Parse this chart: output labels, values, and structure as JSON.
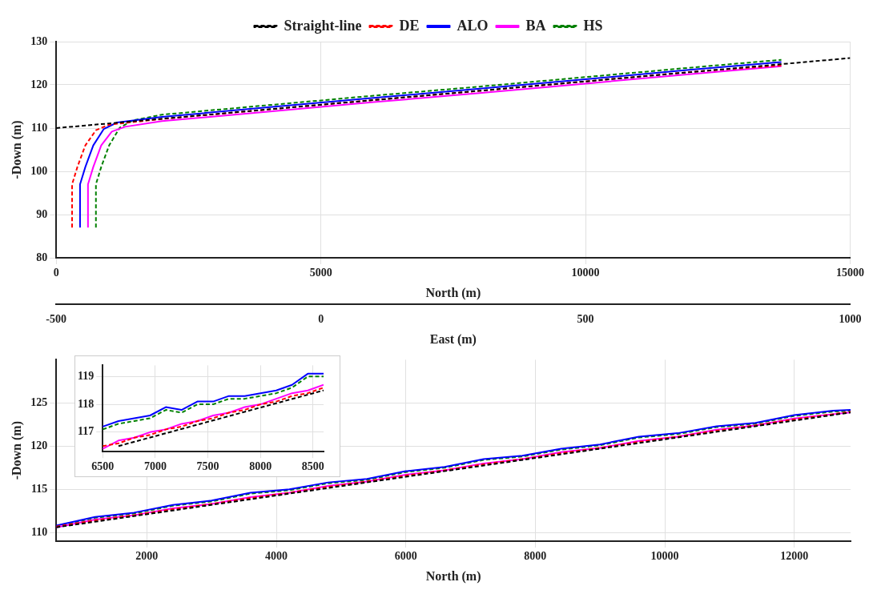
{
  "chart_data": [
    {
      "type": "line",
      "xlabel": "North (m)",
      "ylabel": "-Down (m)",
      "x2label": "East (m)",
      "x2lim": [
        -500,
        1000
      ],
      "x2ticks": [
        -500,
        0,
        500,
        1000
      ],
      "xlim": [
        0,
        15000
      ],
      "xticks": [
        0,
        5000,
        10000,
        15000
      ],
      "ylim": [
        80,
        130
      ],
      "yticks": [
        80,
        90,
        100,
        110,
        120,
        130
      ],
      "grid": true,
      "legend": "top",
      "series": [
        {
          "name": "Straight-line",
          "color": "#000000",
          "line_style": "dashed",
          "x": [
            0,
            15000
          ],
          "values": [
            110.0,
            126.2
          ]
        },
        {
          "name": "DE",
          "color": "#ff0000",
          "line_style": "dashed",
          "x": [
            300,
            300,
            400,
            550,
            750,
            1000,
            2000,
            4000,
            6000,
            8000,
            10000,
            12000,
            13700
          ],
          "values": [
            87,
            97,
            101,
            106,
            109.5,
            110.8,
            112.1,
            114.3,
            116.5,
            118.6,
            120.8,
            123.0,
            124.5
          ]
        },
        {
          "name": "ALO",
          "color": "#0000ff",
          "line_style": "solid",
          "x": [
            450,
            450,
            550,
            700,
            900,
            1150,
            2000,
            4000,
            6000,
            8000,
            10000,
            12000,
            13700
          ],
          "values": [
            87,
            97,
            101,
            106,
            109.8,
            111.3,
            112.6,
            114.8,
            117.0,
            119.1,
            121.3,
            123.5,
            125.3
          ]
        },
        {
          "name": "BA",
          "color": "#ff00ff",
          "line_style": "solid",
          "x": [
            600,
            600,
            700,
            850,
            1050,
            1300,
            2000,
            4000,
            6000,
            8000,
            10000,
            12000,
            13700
          ],
          "values": [
            87,
            97,
            101,
            106,
            109.2,
            110.3,
            111.6,
            113.8,
            116.0,
            118.1,
            120.3,
            122.5,
            124.3
          ]
        },
        {
          "name": "HS",
          "color": "#008000",
          "line_style": "dashed",
          "x": [
            750,
            750,
            850,
            1000,
            1200,
            1450,
            2000,
            4000,
            6000,
            8000,
            10000,
            12000,
            13700
          ],
          "values": [
            87,
            97,
            101,
            106,
            110.1,
            111.8,
            113.1,
            115.3,
            117.5,
            119.6,
            121.8,
            124.0,
            125.8
          ]
        }
      ]
    },
    {
      "type": "line",
      "xlabel": "North (m)",
      "ylabel": "-Down (m)",
      "xlim": [
        600,
        12870
      ],
      "xticks": [
        2000,
        4000,
        6000,
        8000,
        10000,
        12000
      ],
      "ylim": [
        109,
        130
      ],
      "yticks": [
        110,
        115,
        120,
        125
      ],
      "grid": true,
      "series": [
        {
          "color": "#000000",
          "line_style": "dashed",
          "x": [
            600,
            12870
          ],
          "values": [
            110.6,
            123.9
          ]
        },
        {
          "color": "#ff0000",
          "line_style": "dashed",
          "x": [
            600,
            1200,
            1800,
            2400,
            3000,
            3600,
            4200,
            4800,
            5400,
            6000,
            6600,
            7200,
            7800,
            8400,
            9000,
            9600,
            10200,
            10800,
            11400,
            12000,
            12600,
            12870
          ],
          "values": [
            110.7,
            111.4,
            112.0,
            112.7,
            113.3,
            114.0,
            114.6,
            115.3,
            115.9,
            116.6,
            117.2,
            117.9,
            118.5,
            119.2,
            119.8,
            120.5,
            121.1,
            121.8,
            122.4,
            123.1,
            123.7,
            124.0
          ]
        },
        {
          "color": "#0000ff",
          "line_style": "solid",
          "x": [
            600,
            1200,
            1800,
            2400,
            3000,
            3600,
            4200,
            4800,
            5400,
            6000,
            6600,
            7200,
            7800,
            8400,
            9000,
            9600,
            10200,
            10800,
            11400,
            12000,
            12600,
            12870
          ],
          "values": [
            110.8,
            111.8,
            112.3,
            113.2,
            113.7,
            114.6,
            115.0,
            115.8,
            116.2,
            117.1,
            117.6,
            118.5,
            118.9,
            119.7,
            120.2,
            121.1,
            121.5,
            122.3,
            122.7,
            123.6,
            124.1,
            124.2
          ]
        },
        {
          "color": "#ff00ff",
          "line_style": "solid",
          "x": [
            600,
            1200,
            1800,
            2400,
            3000,
            3600,
            4200,
            4800,
            5400,
            6000,
            6600,
            7200,
            7800,
            8400,
            9000,
            9600,
            10200,
            10800,
            11400,
            12000,
            12600,
            12870
          ],
          "values": [
            110.6,
            111.5,
            112.0,
            112.8,
            113.3,
            114.1,
            114.6,
            115.4,
            115.9,
            116.7,
            117.2,
            118.0,
            118.5,
            119.3,
            119.8,
            120.6,
            121.1,
            121.9,
            122.4,
            123.2,
            123.7,
            123.9
          ]
        },
        {
          "color": "#008000",
          "line_style": "dashed",
          "x": [
            600,
            1200,
            1800,
            2400,
            3000,
            3600,
            4200,
            4800,
            5400,
            6000,
            6600,
            7200,
            7800,
            8400,
            9000,
            9600,
            10200,
            10800,
            11400,
            12000,
            12600,
            12870
          ],
          "values": [
            110.7,
            111.7,
            112.2,
            113.1,
            113.6,
            114.5,
            114.9,
            115.7,
            116.1,
            117.0,
            117.5,
            118.4,
            118.8,
            119.6,
            120.1,
            121.0,
            121.4,
            122.2,
            122.6,
            123.5,
            124.0,
            124.1
          ]
        }
      ]
    },
    {
      "type": "line",
      "xlim": [
        6500,
        8600
      ],
      "xticks": [
        6500,
        7000,
        7500,
        8000,
        8500
      ],
      "ylim": [
        116.3,
        119.4
      ],
      "yticks": [
        117,
        118,
        119
      ],
      "grid": true,
      "series": [
        {
          "color": "#000000",
          "line_style": "dashed",
          "x": [
            6650,
            8600
          ],
          "values": [
            116.5,
            118.5
          ]
        },
        {
          "color": "#ff0000",
          "line_style": "dashed",
          "x": [
            6500,
            6650,
            6800,
            6950,
            7100,
            7250,
            7400,
            7550,
            7700,
            7850,
            8000,
            8150,
            8300,
            8450,
            8600
          ],
          "values": [
            116.5,
            116.6,
            116.8,
            116.9,
            117.1,
            117.2,
            117.4,
            117.5,
            117.7,
            117.8,
            118.0,
            118.1,
            118.3,
            118.4,
            118.6
          ]
        },
        {
          "color": "#0000ff",
          "line_style": "solid",
          "x": [
            6500,
            6650,
            6800,
            6950,
            7100,
            7250,
            7400,
            7550,
            7700,
            7850,
            8000,
            8150,
            8300,
            8450,
            8600
          ],
          "values": [
            117.2,
            117.4,
            117.5,
            117.6,
            117.9,
            117.8,
            118.1,
            118.1,
            118.3,
            118.3,
            118.4,
            118.5,
            118.7,
            119.1,
            119.1
          ]
        },
        {
          "color": "#ff00ff",
          "line_style": "solid",
          "x": [
            6500,
            6650,
            6800,
            6950,
            7100,
            7250,
            7400,
            7550,
            7700,
            7850,
            8000,
            8150,
            8300,
            8450,
            8600
          ],
          "values": [
            116.4,
            116.7,
            116.8,
            117.0,
            117.1,
            117.3,
            117.4,
            117.6,
            117.7,
            117.9,
            118.0,
            118.2,
            118.4,
            118.5,
            118.7
          ]
        },
        {
          "color": "#008000",
          "line_style": "dashed",
          "x": [
            6500,
            6650,
            6800,
            6950,
            7100,
            7250,
            7400,
            7550,
            7700,
            7850,
            8000,
            8150,
            8300,
            8450,
            8600
          ],
          "values": [
            117.1,
            117.3,
            117.4,
            117.5,
            117.8,
            117.7,
            118.0,
            118.0,
            118.2,
            118.2,
            118.3,
            118.4,
            118.6,
            119.0,
            119.0
          ]
        }
      ]
    }
  ]
}
